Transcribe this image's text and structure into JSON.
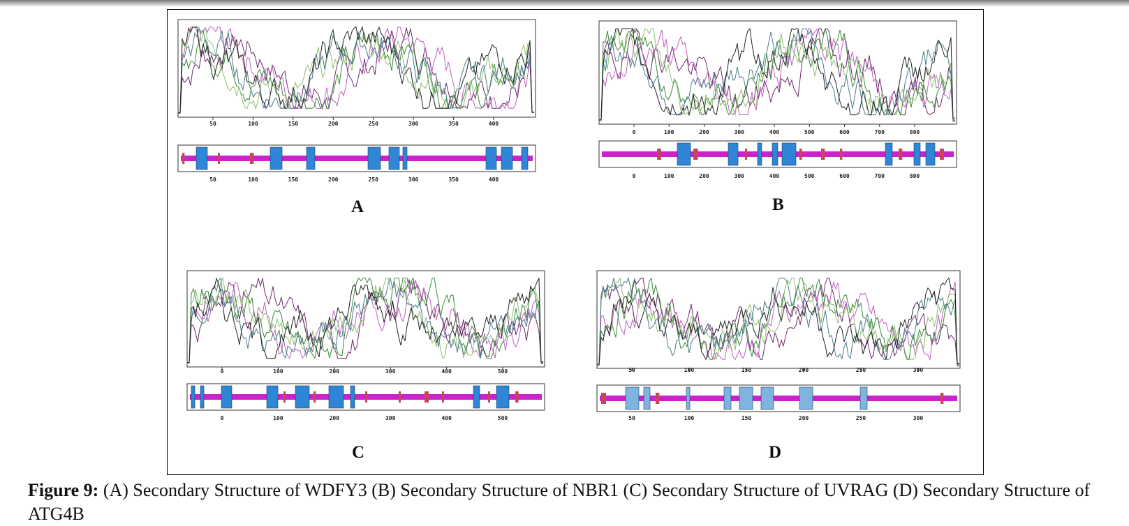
{
  "caption": {
    "label": "Figure 9:",
    "text": "(A) Secondary Structure of WDFY3 (B) Secondary Structure of NBR1 (C) Secondary Structure of UVRAG (D) Secondary Structure of ATG4B"
  },
  "colors": {
    "helix": "#2f86d6",
    "helix_light": "#7eb4dd",
    "strand": "#c8455a",
    "coil": "#cc22cc",
    "line_colors": [
      "#6a2b6a",
      "#c060c0",
      "#3a8a3a",
      "#8fbf6f",
      "#4a7a8a",
      "#222222"
    ]
  },
  "panels": [
    {
      "letter": "A",
      "ticks": [
        "50",
        "100",
        "150",
        "200",
        "250",
        "300",
        "350",
        "400"
      ],
      "seq_ticks": [
        "50",
        "100",
        "150",
        "200",
        "250",
        "300",
        "350",
        "400"
      ]
    },
    {
      "letter": "B",
      "ticks": [
        "0",
        "100",
        "200",
        "300",
        "400",
        "500",
        "600",
        "700",
        "800"
      ],
      "seq_ticks": [
        "0",
        "100",
        "200",
        "300",
        "400",
        "500",
        "600",
        "700",
        "800"
      ]
    },
    {
      "letter": "C",
      "ticks": [
        "0",
        "100",
        "200",
        "300",
        "400",
        "500"
      ],
      "seq_ticks": [
        "0",
        "100",
        "200",
        "300",
        "400",
        "500"
      ]
    },
    {
      "letter": "D",
      "ticks": [
        "50",
        "100",
        "150",
        "200",
        "250",
        "300"
      ],
      "seq_ticks": [
        "50",
        "100",
        "150",
        "200",
        "250",
        "300"
      ]
    }
  ]
}
